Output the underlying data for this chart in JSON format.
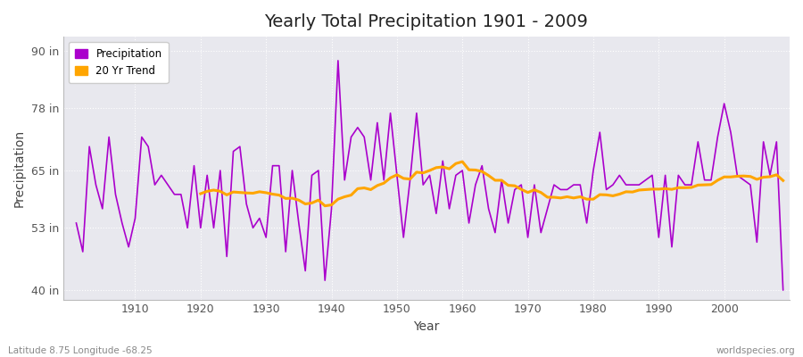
{
  "title": "Yearly Total Precipitation 1901 - 2009",
  "xlabel": "Year",
  "ylabel": "Precipitation",
  "subtitle": "Latitude 8.75 Longitude -68.25",
  "watermark": "worldspecies.org",
  "yticks": [
    40,
    53,
    65,
    78,
    90
  ],
  "ytick_labels": [
    "40 in",
    "53 in",
    "65 in",
    "78 in",
    "90 in"
  ],
  "ylim": [
    38,
    93
  ],
  "xlim": [
    1899,
    2010
  ],
  "years": [
    1901,
    1902,
    1903,
    1904,
    1905,
    1906,
    1907,
    1908,
    1909,
    1910,
    1911,
    1912,
    1913,
    1914,
    1915,
    1916,
    1917,
    1918,
    1919,
    1920,
    1921,
    1922,
    1923,
    1924,
    1925,
    1926,
    1927,
    1928,
    1929,
    1930,
    1931,
    1932,
    1933,
    1934,
    1935,
    1936,
    1937,
    1938,
    1939,
    1940,
    1941,
    1942,
    1943,
    1944,
    1945,
    1946,
    1947,
    1948,
    1949,
    1950,
    1951,
    1952,
    1953,
    1954,
    1955,
    1956,
    1957,
    1958,
    1959,
    1960,
    1961,
    1962,
    1963,
    1964,
    1965,
    1966,
    1967,
    1968,
    1969,
    1970,
    1971,
    1972,
    1973,
    1974,
    1975,
    1976,
    1977,
    1978,
    1979,
    1980,
    1981,
    1982,
    1983,
    1984,
    1985,
    1986,
    1987,
    1988,
    1989,
    1990,
    1991,
    1992,
    1993,
    1994,
    1995,
    1996,
    1997,
    1998,
    1999,
    2000,
    2001,
    2002,
    2003,
    2004,
    2005,
    2006,
    2007,
    2008,
    2009
  ],
  "precip": [
    54,
    48,
    70,
    62,
    57,
    72,
    60,
    54,
    49,
    55,
    72,
    70,
    62,
    64,
    62,
    60,
    60,
    53,
    66,
    53,
    64,
    53,
    65,
    47,
    69,
    70,
    58,
    53,
    55,
    51,
    66,
    66,
    48,
    65,
    54,
    44,
    64,
    65,
    42,
    57,
    88,
    63,
    72,
    74,
    72,
    63,
    75,
    63,
    77,
    64,
    51,
    63,
    77,
    62,
    64,
    56,
    67,
    57,
    64,
    65,
    54,
    62,
    66,
    57,
    52,
    63,
    54,
    61,
    62,
    51,
    62,
    52,
    57,
    62,
    61,
    61,
    62,
    62,
    54,
    65,
    73,
    61,
    62,
    64,
    62,
    62,
    62,
    63,
    64,
    51,
    64,
    49,
    64,
    62,
    62,
    71,
    63,
    63,
    72,
    79,
    73,
    64,
    63,
    62,
    50,
    71,
    64,
    71,
    40
  ],
  "precip_color": "#AA00CC",
  "trend_color": "#FFA500",
  "bg_color": "#FFFFFF",
  "plot_bg_color": "#E8E8EE",
  "grid_color": "#FFFFFF",
  "legend_bg": "#FFFFFF"
}
